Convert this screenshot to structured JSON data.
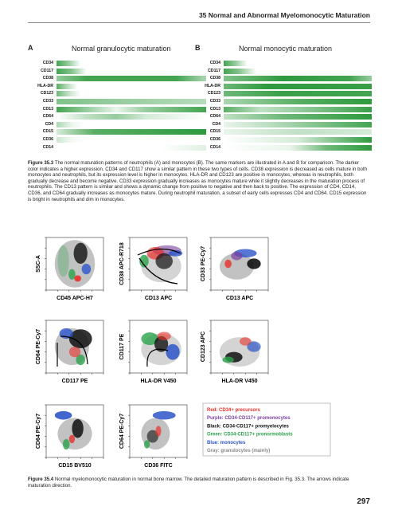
{
  "header": {
    "title": "35  Normal and Abnormal Myelomonocytic Maturation"
  },
  "figure_35_3": {
    "panels": [
      {
        "label": "A",
        "title": "Normal granulocytic maturation",
        "markers": [
          "CD34",
          "CD117",
          "CD38",
          "HLA-DR",
          "CD123",
          "CD33",
          "CD13",
          "CD64",
          "CD4",
          "CD15",
          "CD36",
          "CD14"
        ]
      },
      {
        "label": "B",
        "title": "Normal monocytic maturation",
        "markers": [
          "CD34",
          "CD117",
          "CD38",
          "HLA-DR",
          "CD123",
          "CD33",
          "CD13",
          "CD64",
          "CD4",
          "CD15",
          "CD36",
          "CD14"
        ]
      }
    ],
    "caption_label": "Figure 35.3",
    "caption": "The normal maturation patterns of neutrophils (A) and monocytes (B). The same markers are illustrated in A and B for comparison. The darker color indicates a higher expression. CD34 and CD117 show a similar pattern in these two types of cells. CD38 expression is decreased as cells mature in both monocytes and neutrophils, but its expression level is higher in monocytes. HLA-DR and CD123 are positive in monocytes, whereas in neutrophils, both gradually decrease and become negative. CD33 expression gradually increases as monocytes mature while it slightly decreases in the maturation process of neutrophils. The CD13 pattern is similar and shows a dynamic change from positive to negative and then back to positive. The expression of CD4, CD14, CD36, and CD64 gradually increases as monocytes mature. During neutrophil maturation, a subset of early cells expresses CD4 and CD64. CD15 expression is bright in neutrophils and dim in monocytes."
  },
  "figure_35_4": {
    "plots": [
      {
        "y_label": "SSC-A",
        "x_label": "CD45 APC-H7"
      },
      {
        "y_label": "CD38 APC-R718",
        "x_label": "CD13 APC"
      },
      {
        "y_label": "CD33 PE-Cy7",
        "x_label": "CD13 APC"
      },
      {
        "y_label": "CD64 PE-Cy7",
        "x_label": "CD117 PE"
      },
      {
        "y_label": "CD117 PE",
        "x_label": "HLA-DR V450"
      },
      {
        "y_label": "CD123 APC",
        "x_label": "HLA-DR V450"
      },
      {
        "y_label": "CD64 PE-Cy7",
        "x_label": "CD15 BV510"
      },
      {
        "y_label": "CD64 PE-Cy7",
        "x_label": "CD36 FITC"
      }
    ],
    "legend": [
      {
        "text": "Red: CD34+ precursors",
        "color": "#e8302a"
      },
      {
        "text": "Purple: CD34-CD117+ promonocytes",
        "color": "#7b3fa0"
      },
      {
        "text": "Black: CD34-CD117+ promyelocytes",
        "color": "#111111"
      },
      {
        "text": "Green: CD34-CD117+ pronormoblasts",
        "color": "#2aa24a"
      },
      {
        "text": "Blue: monocytes",
        "color": "#2c55c8"
      },
      {
        "text": "Gray: granulocytes (mainly)",
        "color": "#888888"
      }
    ],
    "caption_label": "Figure 35.4",
    "caption": "Normal myelomonocytic maturation in normal bone marrow. The detailed maturation pattern is described in Fig. 35.3. The arrows indicate maturation direction."
  },
  "page_number": "297"
}
